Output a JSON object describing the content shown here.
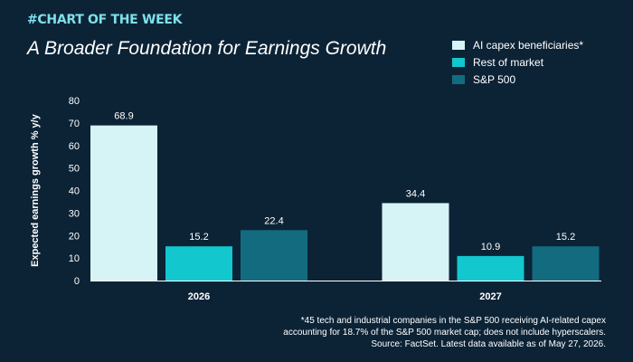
{
  "kicker": "#CHART OF THE WEEK",
  "title": "A Broader Foundation for Earnings Growth",
  "colors": {
    "background": "#0c2336",
    "ai_capex": "#d6f3f6",
    "rest_of_market": "#13c7cf",
    "sp500": "#136b80"
  },
  "legend": [
    {
      "label": "AI capex beneficiaries*",
      "color": "#d6f3f6"
    },
    {
      "label": "Rest of market",
      "color": "#13c7cf"
    },
    {
      "label": "S&P 500",
      "color": "#136b80"
    }
  ],
  "chart_data": {
    "type": "bar",
    "categories": [
      "2026",
      "2027"
    ],
    "series": [
      {
        "name": "AI capex beneficiaries*",
        "values": [
          68.9,
          34.4
        ]
      },
      {
        "name": "Rest of market",
        "values": [
          15.2,
          10.9
        ]
      },
      {
        "name": "S&P 500",
        "values": [
          22.4,
          15.2
        ]
      }
    ],
    "data_labels": [
      [
        "68.9",
        "34.4"
      ],
      [
        "15.2",
        "10.9"
      ],
      [
        "22.4",
        "15.2"
      ]
    ],
    "ylabel": "Expected earnings growth % y/y",
    "yticks": [
      "0",
      "10",
      "20",
      "30",
      "40",
      "50",
      "60",
      "70",
      "80"
    ],
    "ylim": [
      0,
      80
    ],
    "grid": false,
    "legend_position": "top-right"
  },
  "footnote": {
    "line1": "*45 tech and industrial companies in the S&P 500 receiving AI-related capex",
    "line2": "accounting for 18.7% of the S&P 500 market cap; does not include hyperscalers.",
    "line3": "Source: FactSet. Latest data available as of May 27, 2026."
  }
}
